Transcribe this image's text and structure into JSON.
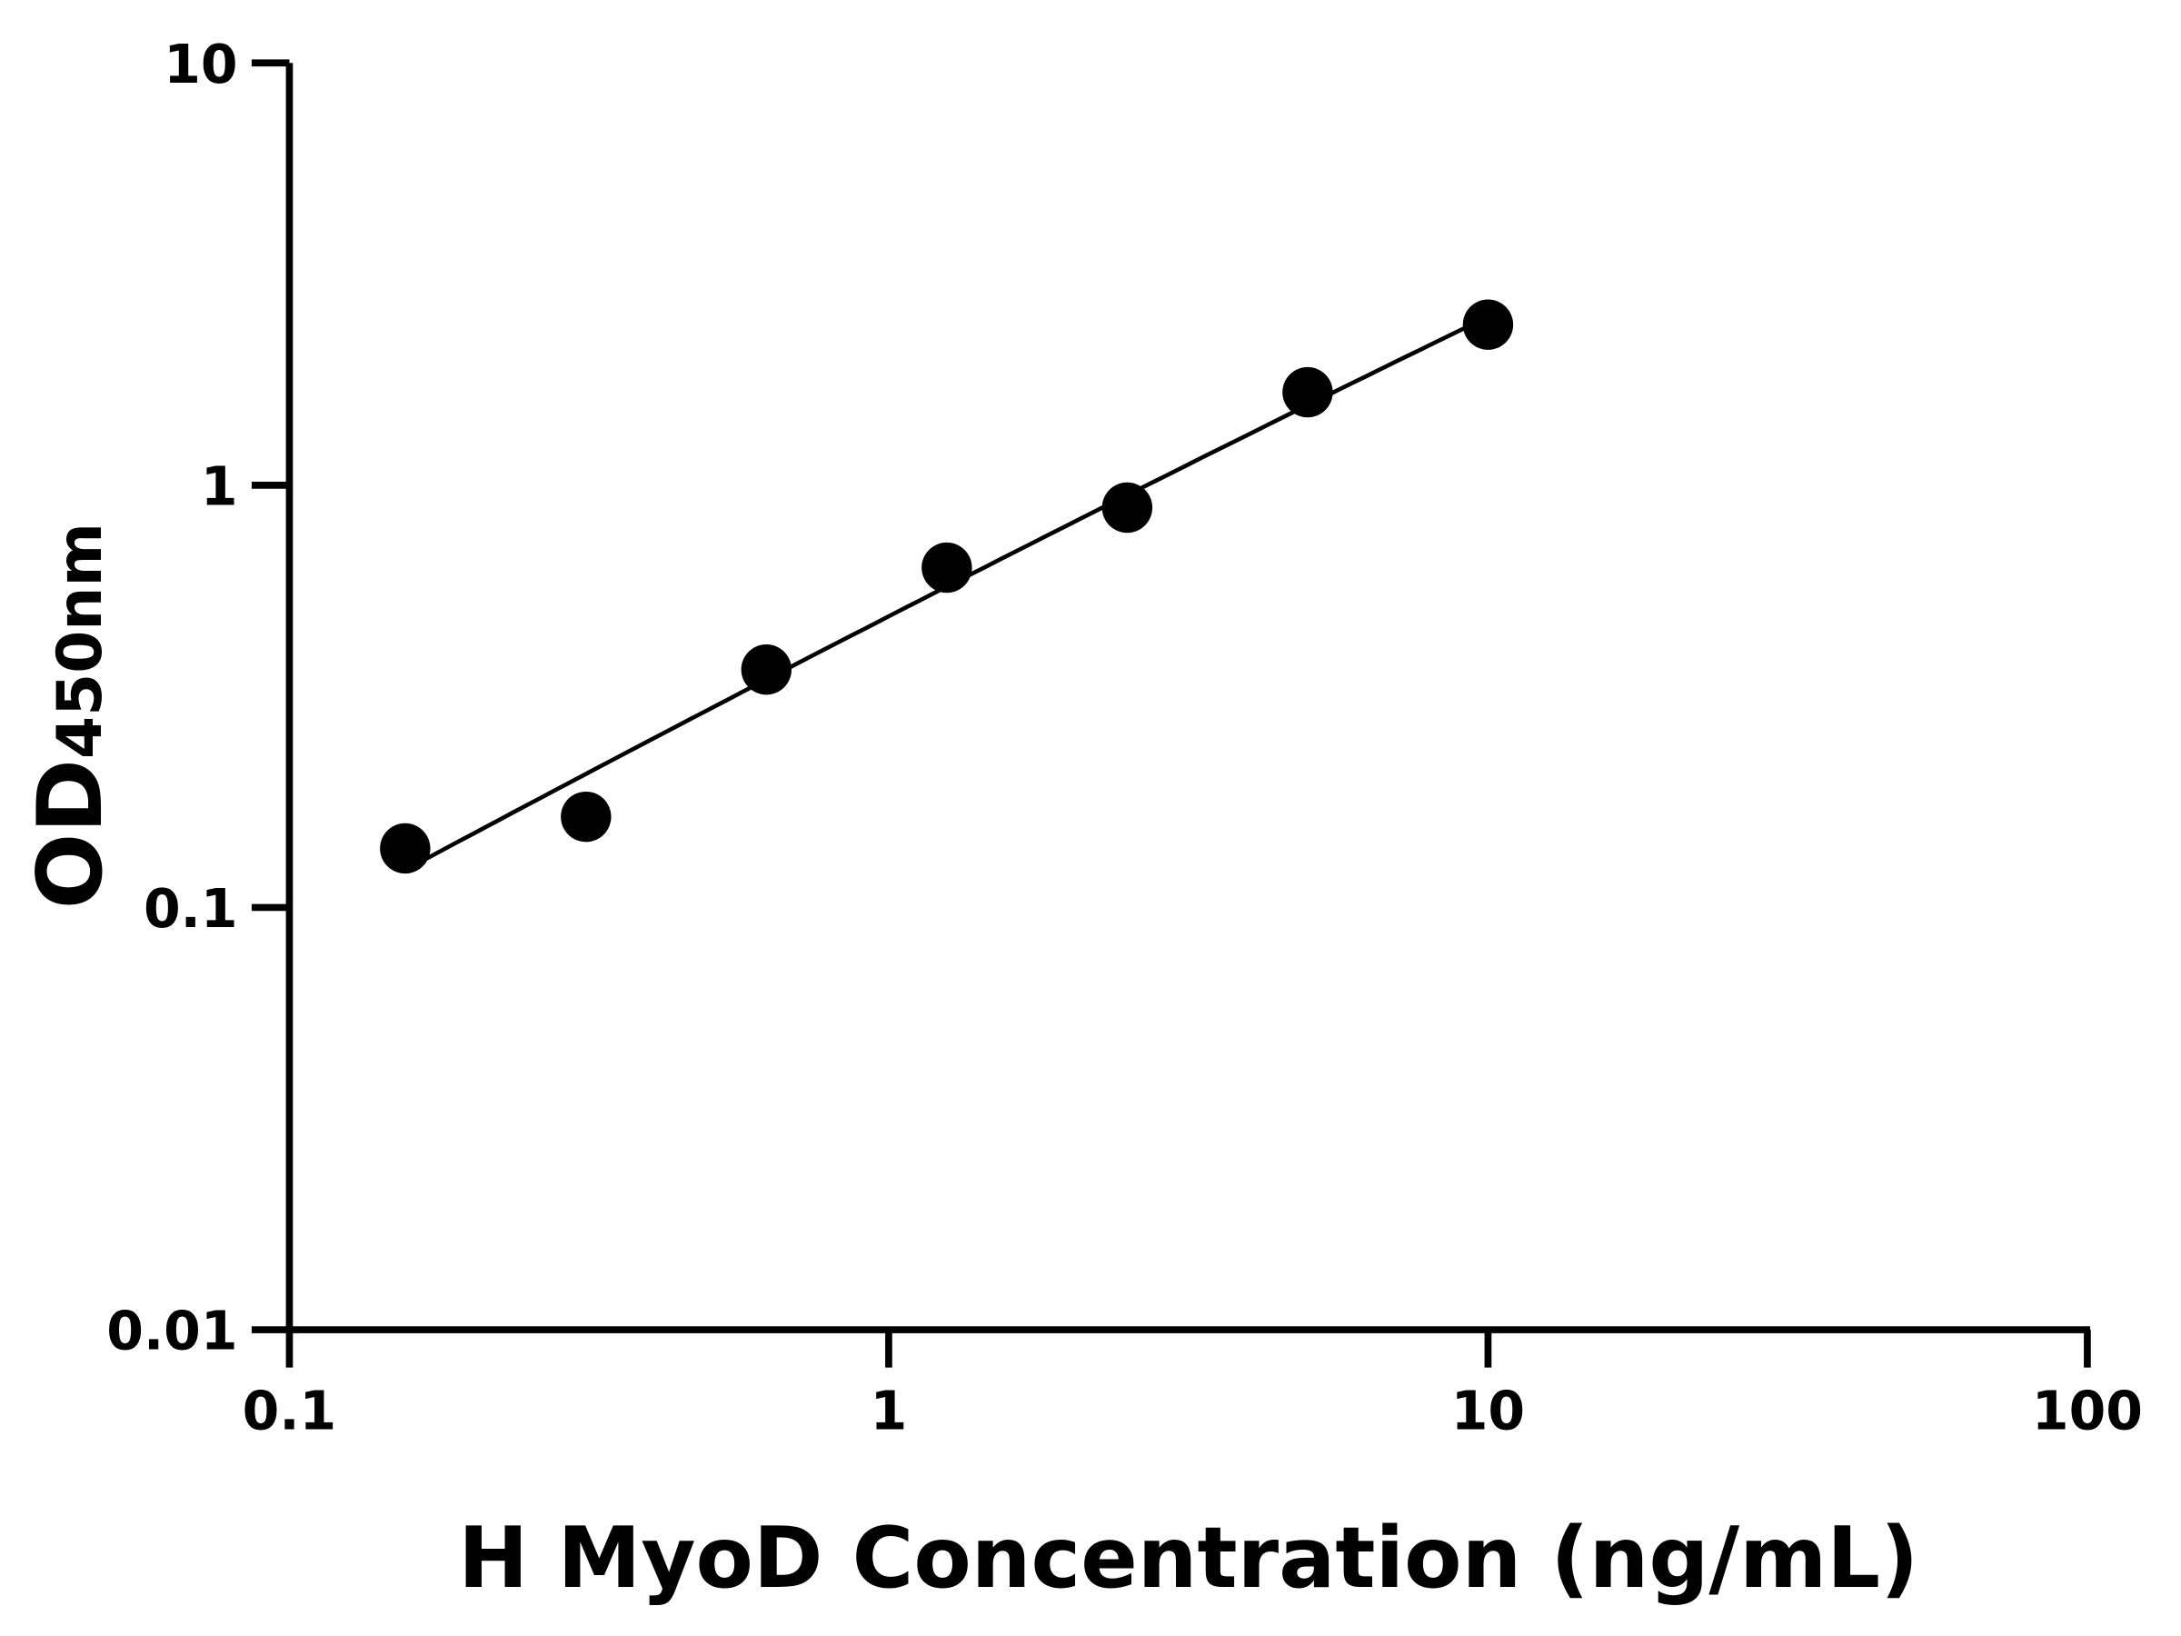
{
  "chart_data": {
    "type": "scatter",
    "title": "",
    "xlabel": "H MyoD Concentration (ng/mL)",
    "ylabel_main": "OD",
    "ylabel_sub": "450nm",
    "x_scale": "log",
    "y_scale": "log",
    "xlim": [
      0.1,
      100
    ],
    "ylim": [
      0.01,
      10
    ],
    "x_ticks": [
      "0.1",
      "1",
      "10",
      "100"
    ],
    "y_ticks": [
      "0.01",
      "0.1",
      "1",
      "10"
    ],
    "grid": false,
    "fit_curve": true,
    "point_color": "#000000",
    "x": [
      0.156,
      0.3125,
      0.625,
      1.25,
      2.5,
      5,
      10
    ],
    "y": [
      0.138,
      0.164,
      0.366,
      0.638,
      0.885,
      1.66,
      2.4
    ]
  }
}
